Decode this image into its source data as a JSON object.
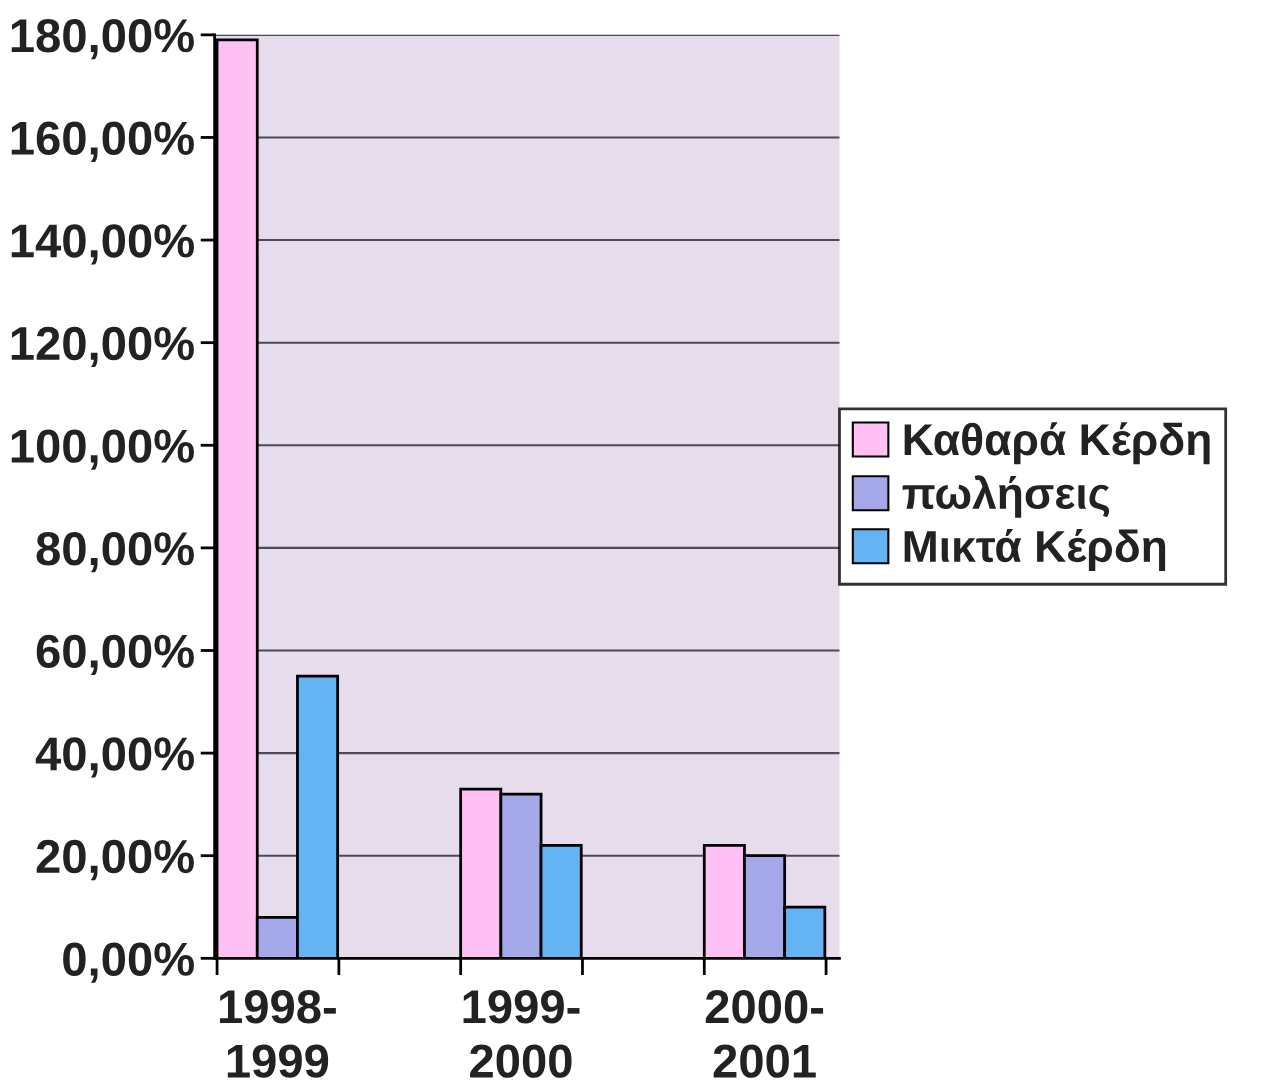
{
  "chart_data": {
    "type": "bar",
    "categories": [
      "1998-\n1999",
      "1999-\n2000",
      "2000-\n2001"
    ],
    "series": [
      {
        "name": "Καθαρά Κέρδη",
        "color": "#ffc0f4",
        "values": [
          179,
          33,
          22
        ]
      },
      {
        "name": "πωλήσεις",
        "color": "#a4a8e8",
        "values": [
          8,
          32,
          20
        ]
      },
      {
        "name": "Μικτά Κέρδη",
        "color": "#64b4f4",
        "values": [
          55,
          22,
          10
        ]
      }
    ],
    "ylim": [
      0,
      180
    ],
    "yticks": [
      {
        "value": 0,
        "label": "0,00%"
      },
      {
        "value": 20,
        "label": "20,00%"
      },
      {
        "value": 40,
        "label": "40,00%"
      },
      {
        "value": 60,
        "label": "60,00%"
      },
      {
        "value": 80,
        "label": "80,00%"
      },
      {
        "value": 100,
        "label": "100,00%"
      },
      {
        "value": 120,
        "label": "120,00%"
      },
      {
        "value": 140,
        "label": "140,00%"
      },
      {
        "value": 160,
        "label": "160,00%"
      },
      {
        "value": 180,
        "label": "180,00%"
      }
    ],
    "grid": "y",
    "legend": "right"
  }
}
